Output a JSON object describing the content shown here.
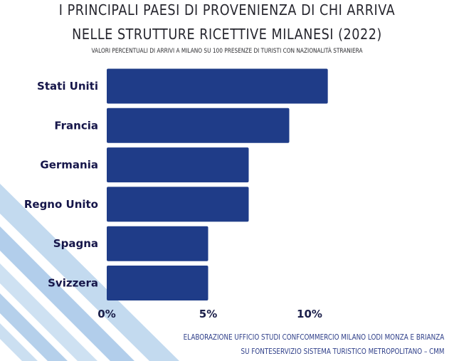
{
  "header": {
    "title_line1": "I PRINCIPALI PAESI DI PROVENIENZA DI CHI ARRIVA",
    "title_line2": "NELLE STRUTTURE RICETTIVE MILANESI (2022)",
    "subtitle": "VALORI PERCENTUALI DI ARRIVI A MILANO SU 100 PRESENZE DI TURISTI CON NAZIONALITÀ STRANIERA"
  },
  "footer": {
    "source_line1": "ELABORAZIONE UFFICIO STUDI  CONFCOMMERCIO MILANO LODI MONZA E BRIANZA",
    "source_line2": "SU FONTESERVIZIO SISTEMA TURISTICO METROPOLITANO – CMM"
  },
  "colors": {
    "bar": "#1f3c88",
    "stripe": "#a9c7e6",
    "text": "#16164a"
  },
  "chart_data": {
    "type": "bar",
    "orientation": "horizontal",
    "categories": [
      "Stati Uniti",
      "Francia",
      "Germania",
      "Regno Unito",
      "Spagna",
      "Svizzera"
    ],
    "values": [
      10.9,
      9.0,
      7.0,
      7.0,
      5.0,
      5.0
    ],
    "x_ticks": [
      0,
      5,
      10
    ],
    "x_tick_labels": [
      "0%",
      "5%",
      "10%"
    ],
    "xlim": [
      0,
      11
    ],
    "grid": false,
    "title": "I PRINCIPALI PAESI DI PROVENIENZA DI CHI ARRIVA NELLE STRUTTURE RICETTIVE MILANESI (2022)",
    "xlabel": "",
    "ylabel": ""
  }
}
